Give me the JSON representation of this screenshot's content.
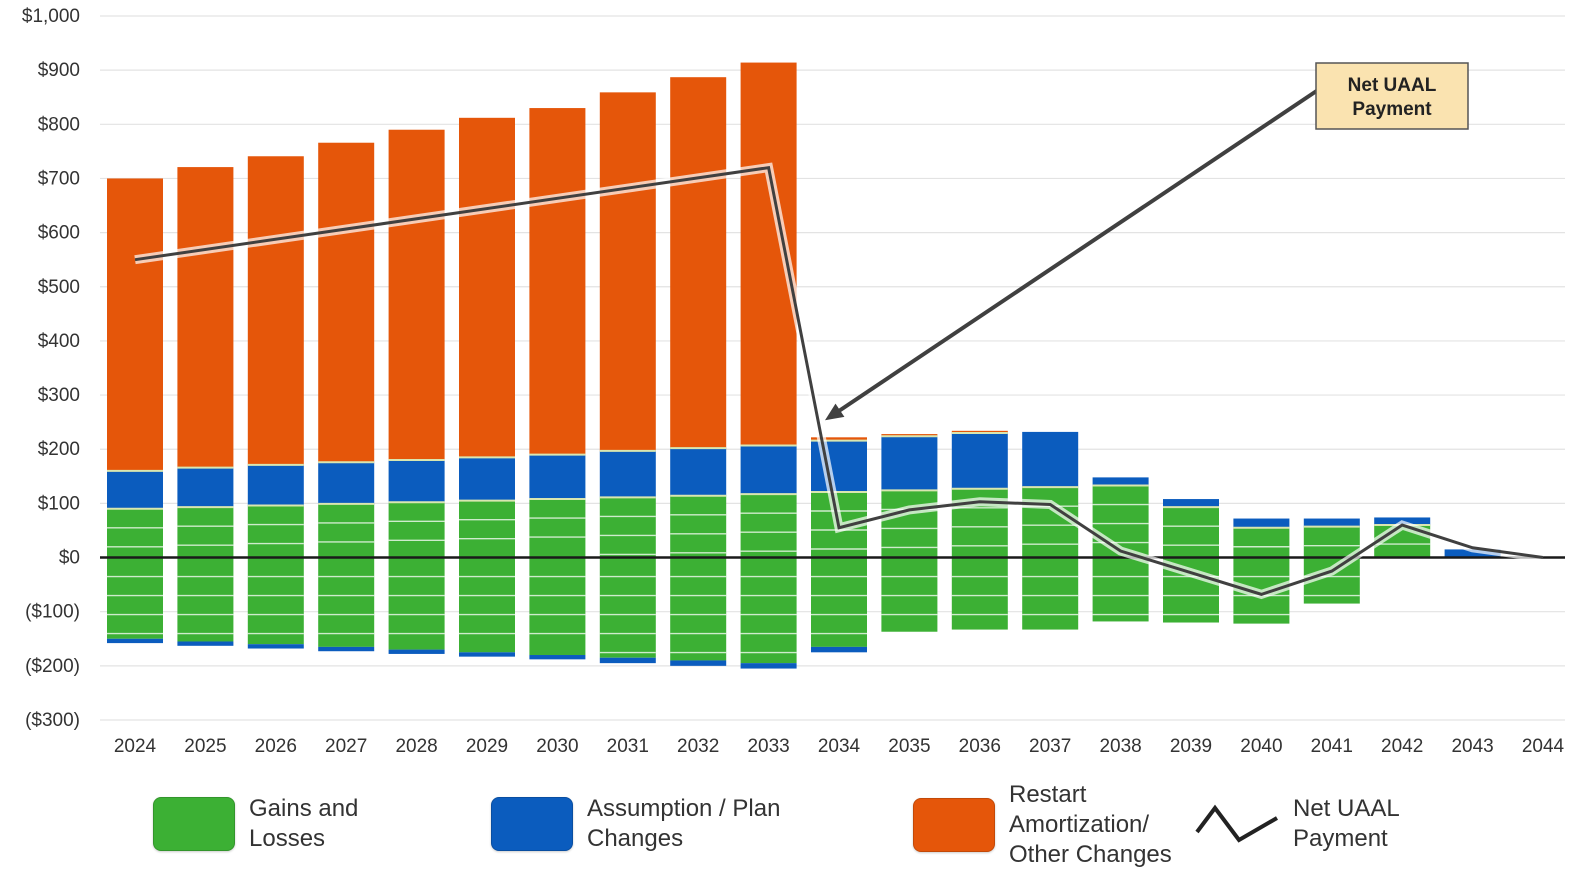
{
  "chart_data": {
    "type": "bar",
    "stacked": true,
    "title": "",
    "xlabel": "",
    "ylabel": "",
    "ylim": [
      -300,
      1000
    ],
    "yticks": [
      1000,
      900,
      800,
      700,
      600,
      500,
      400,
      300,
      200,
      100,
      0,
      -100,
      -200,
      -300
    ],
    "ytick_labels": [
      "$1,000",
      "$900",
      "$800",
      "$700",
      "$600",
      "$500",
      "$400",
      "$300",
      "$200",
      "$100",
      "$0",
      "($100)",
      "($200)",
      "($300)"
    ],
    "grid": true,
    "legend_position": "bottom",
    "categories": [
      "2024",
      "2025",
      "2026",
      "2027",
      "2028",
      "2029",
      "2030",
      "2031",
      "2032",
      "2033",
      "2034",
      "2035",
      "2036",
      "2037",
      "2038",
      "2039",
      "2040",
      "2041",
      "2042",
      "2043",
      "2044"
    ],
    "series": [
      {
        "name": "Gains and Losses",
        "color": "#3CB034",
        "positive": [
          90,
          93,
          96,
          99,
          102,
          105,
          108,
          111,
          114,
          117,
          121,
          124,
          127,
          130,
          133,
          93,
          55,
          57,
          60,
          0,
          0
        ],
        "negative": [
          -150,
          -155,
          -160,
          -165,
          -170,
          -175,
          -180,
          -185,
          -190,
          -195,
          -165,
          -137,
          -133,
          -133,
          -118,
          -120,
          -122,
          -85,
          0,
          0,
          0
        ]
      },
      {
        "name": "Assumption / Plan Changes",
        "color": "#0B5CBE",
        "positive": [
          70,
          73,
          75,
          77,
          78,
          80,
          82,
          86,
          88,
          90,
          95,
          100,
          103,
          102,
          15,
          15,
          17,
          15,
          14,
          15,
          0
        ],
        "negative": [
          -8,
          -8,
          -8,
          -8,
          -8,
          -8,
          -8,
          -10,
          -10,
          -10,
          -10,
          0,
          0,
          0,
          0,
          0,
          0,
          0,
          0,
          0,
          0
        ]
      },
      {
        "name": "Restart Amortization/ Other Changes",
        "color": "#E5560A",
        "positive": [
          540,
          555,
          570,
          590,
          610,
          627,
          640,
          662,
          685,
          707,
          6,
          4,
          4,
          0,
          0,
          0,
          0,
          0,
          0,
          0,
          0
        ],
        "negative": [
          0,
          0,
          0,
          0,
          0,
          0,
          0,
          0,
          0,
          0,
          0,
          0,
          0,
          0,
          0,
          0,
          0,
          0,
          0,
          0,
          0
        ]
      }
    ],
    "line_series": {
      "name": "Net UAAL Payment",
      "color": "#404040",
      "points": [
        {
          "x": "2024",
          "y": 550
        },
        {
          "x": "2033",
          "y": 720
        },
        {
          "x": "2034",
          "y": 55
        },
        {
          "x": "2035",
          "y": 88
        },
        {
          "x": "2036",
          "y": 103
        },
        {
          "x": "2037",
          "y": 98
        },
        {
          "x": "2038",
          "y": 12
        },
        {
          "x": "2039",
          "y": -28
        },
        {
          "x": "2040",
          "y": -68
        },
        {
          "x": "2041",
          "y": -25
        },
        {
          "x": "2042",
          "y": 60
        },
        {
          "x": "2043",
          "y": 18
        },
        {
          "x": "2044",
          "y": 0
        }
      ]
    },
    "annotation": {
      "text_line1": "Net UAAL",
      "text_line2": "Payment",
      "points_to": {
        "x": "2034",
        "y": 235
      }
    }
  },
  "legend": {
    "items": [
      {
        "label": "Gains and\nLosses",
        "color": "#3CB034",
        "kind": "swatch"
      },
      {
        "label": "Assumption / Plan\nChanges",
        "color": "#0B5CBE",
        "kind": "swatch"
      },
      {
        "label": "Restart\nAmortization/\nOther Changes",
        "color": "#E5560A",
        "kind": "swatch"
      },
      {
        "label": "Net UAAL\nPayment",
        "color": "#222222",
        "kind": "line"
      }
    ]
  }
}
